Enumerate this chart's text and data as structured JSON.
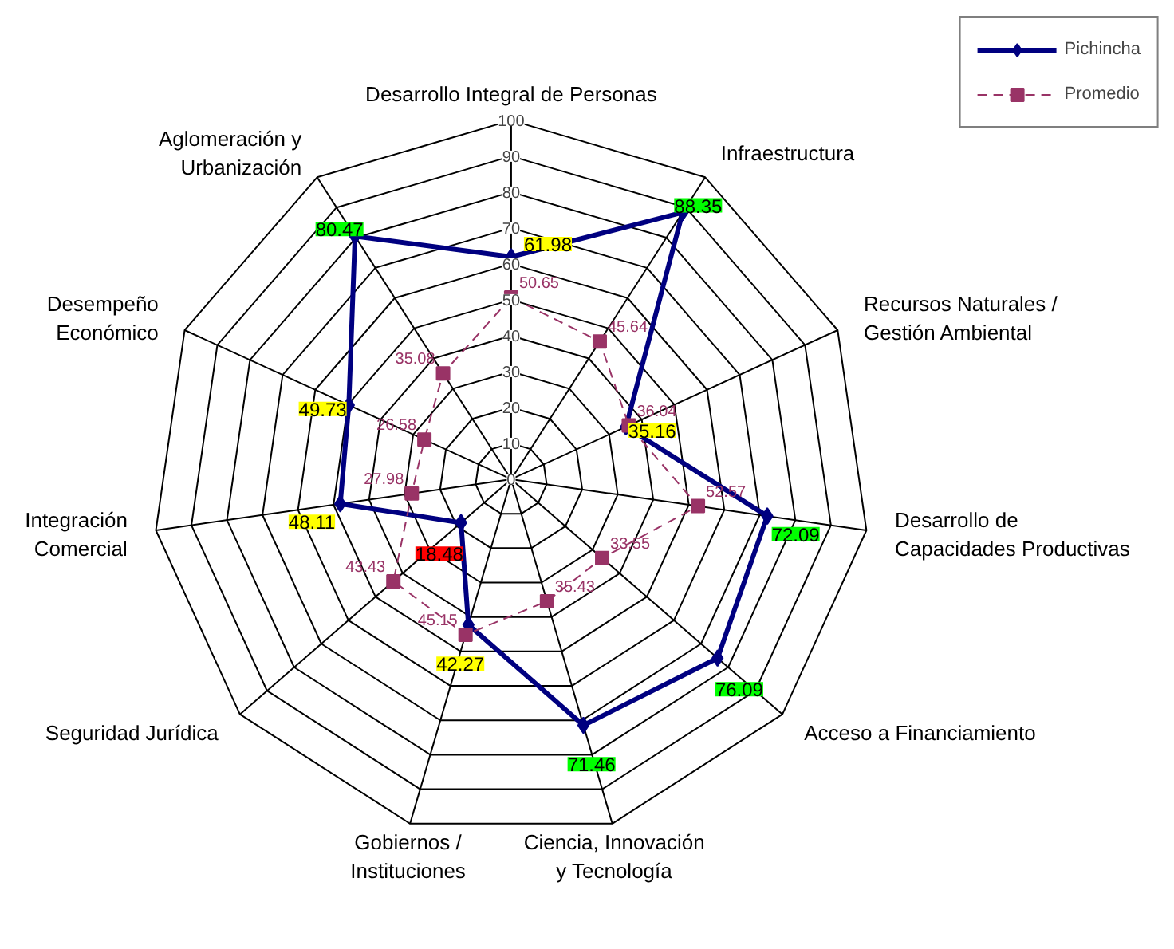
{
  "chart_data": {
    "type": "radar",
    "categories": [
      "Desarrollo Integral de Personas",
      "Infraestructura",
      "Recursos Naturales / Gestión Ambiental",
      "Desarrollo de Capacidades Productivas",
      "Acceso a Financiamiento",
      "Ciencia, Innovación y Tecnología",
      "Gobiernos / Instituciones",
      "Seguridad Jurídica",
      "Integración Comercial",
      "Desempeño Económico",
      "Aglomeración y Urbanización"
    ],
    "series": [
      {
        "name": "Pichincha",
        "color": "#000080",
        "marker": "diamond",
        "line_style": "solid",
        "colors": [
          "#ffff00",
          "#00ff00",
          "#ffff00",
          "#00ff00",
          "#00ff00",
          "#00ff00",
          "#ffff00",
          "#ff0000",
          "#ffff00",
          "#ffff00",
          "#00ff00"
        ],
        "values": [
          61.98,
          88.35,
          35.16,
          72.09,
          76.09,
          71.46,
          42.27,
          18.48,
          48.11,
          49.73,
          80.47
        ]
      },
      {
        "name": "Promedio",
        "color": "#993366",
        "marker": "square",
        "line_style": "dashed",
        "values": [
          50.65,
          45.64,
          36.04,
          52.57,
          33.55,
          35.43,
          45.15,
          43.43,
          27.98,
          26.58,
          35.08
        ]
      }
    ],
    "ylim": [
      0,
      100
    ],
    "yticks": [
      0,
      10,
      20,
      30,
      40,
      50,
      60,
      70,
      80,
      90,
      100
    ],
    "grid": true,
    "legend": "top right",
    "data_labels": true
  }
}
